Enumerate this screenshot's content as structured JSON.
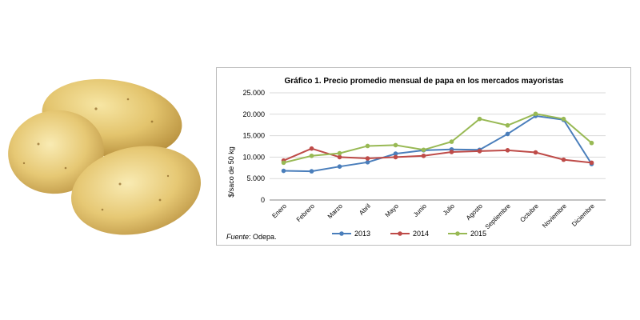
{
  "image": {
    "subject": "potatoes"
  },
  "chart_data": {
    "type": "line",
    "title": "Gráfico 1. Precio promedio mensual de papa en los mercados mayoristas",
    "xlabel": "",
    "ylabel": "$/saco de 50 kg",
    "categories": [
      "Enero",
      "Febrero",
      "Marzo",
      "Abril",
      "Mayo",
      "Junio",
      "Julio",
      "Agosto",
      "Septiembre",
      "Octubre",
      "Noviembre",
      "Diciembre"
    ],
    "yticks": [
      0,
      5000,
      10000,
      15000,
      20000,
      25000
    ],
    "ytick_labels": [
      "0",
      "5.000",
      "10.000",
      "15.000",
      "20.000",
      "25.000"
    ],
    "ylim": [
      0,
      25000
    ],
    "grid": "horizontal",
    "legend": "bottom",
    "series": [
      {
        "name": "2013",
        "color": "#4a7ebb",
        "values": [
          6800,
          6700,
          7800,
          8800,
          10800,
          11600,
          11800,
          11700,
          15400,
          19600,
          18700,
          8400
        ]
      },
      {
        "name": "2014",
        "color": "#be4b48",
        "values": [
          9200,
          12000,
          10000,
          9700,
          10000,
          10300,
          11200,
          11400,
          11600,
          11100,
          9400,
          8700
        ]
      },
      {
        "name": "2015",
        "color": "#98b954",
        "values": [
          8700,
          10300,
          10900,
          12600,
          12800,
          11700,
          13600,
          18900,
          17400,
          20100,
          18900,
          13300
        ]
      }
    ],
    "source_label": "Fuente",
    "source_text": ": Odepa."
  }
}
